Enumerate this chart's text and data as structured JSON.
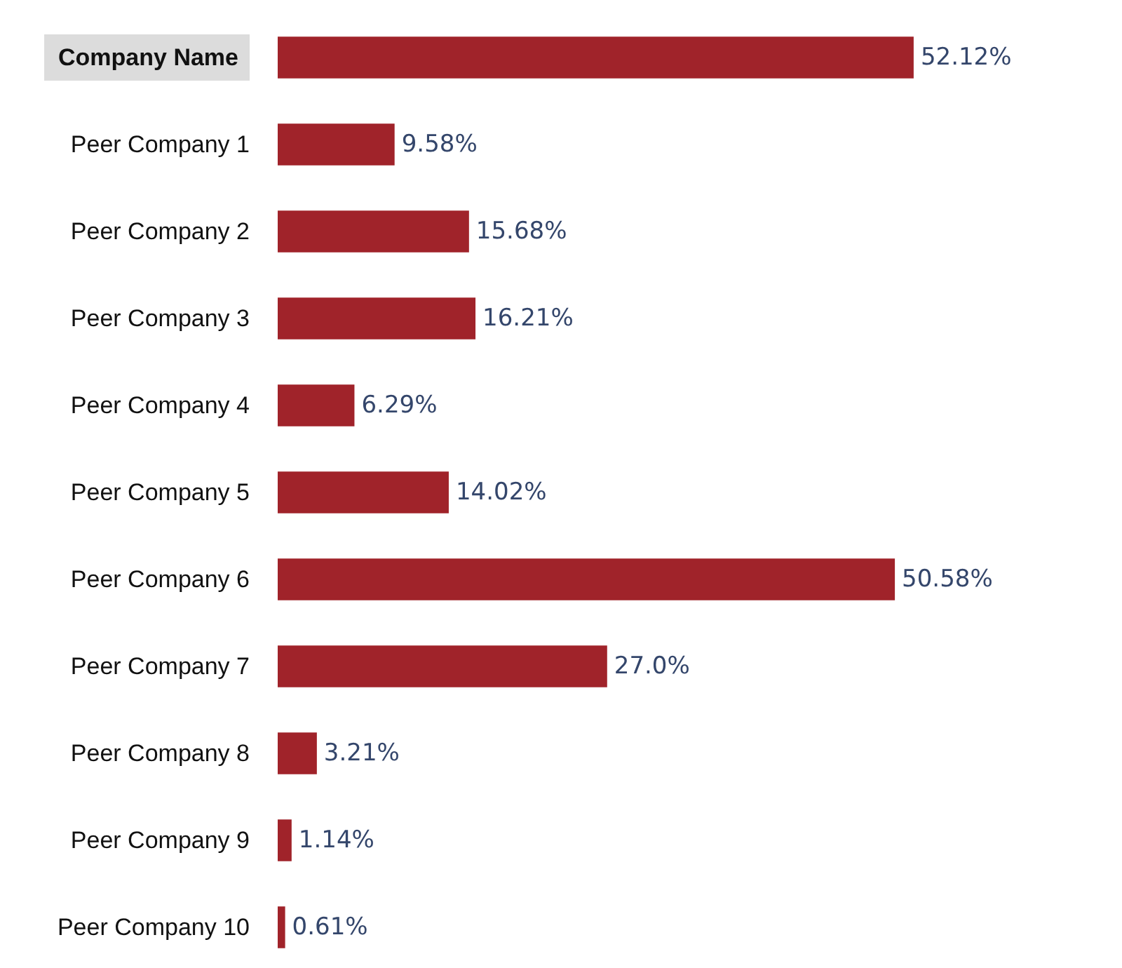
{
  "chart_data": {
    "type": "bar",
    "orientation": "horizontal",
    "categories": [
      "Company Name",
      "Peer Company 1",
      "Peer Company 2",
      "Peer Company 3",
      "Peer Company 4",
      "Peer Company 5",
      "Peer Company 6",
      "Peer Company 7",
      "Peer Company 8",
      "Peer Company 9",
      "Peer Company 10"
    ],
    "values": [
      52.12,
      9.58,
      15.68,
      16.21,
      6.29,
      14.02,
      50.58,
      27.0,
      3.21,
      1.14,
      0.61
    ],
    "value_labels": [
      "52.12%",
      "9.58%",
      "15.68%",
      "16.21%",
      "6.29%",
      "14.02%",
      "50.58%",
      "27.0%",
      "3.21%",
      "1.14%",
      "0.61%"
    ],
    "color": "#a0232a"
  }
}
